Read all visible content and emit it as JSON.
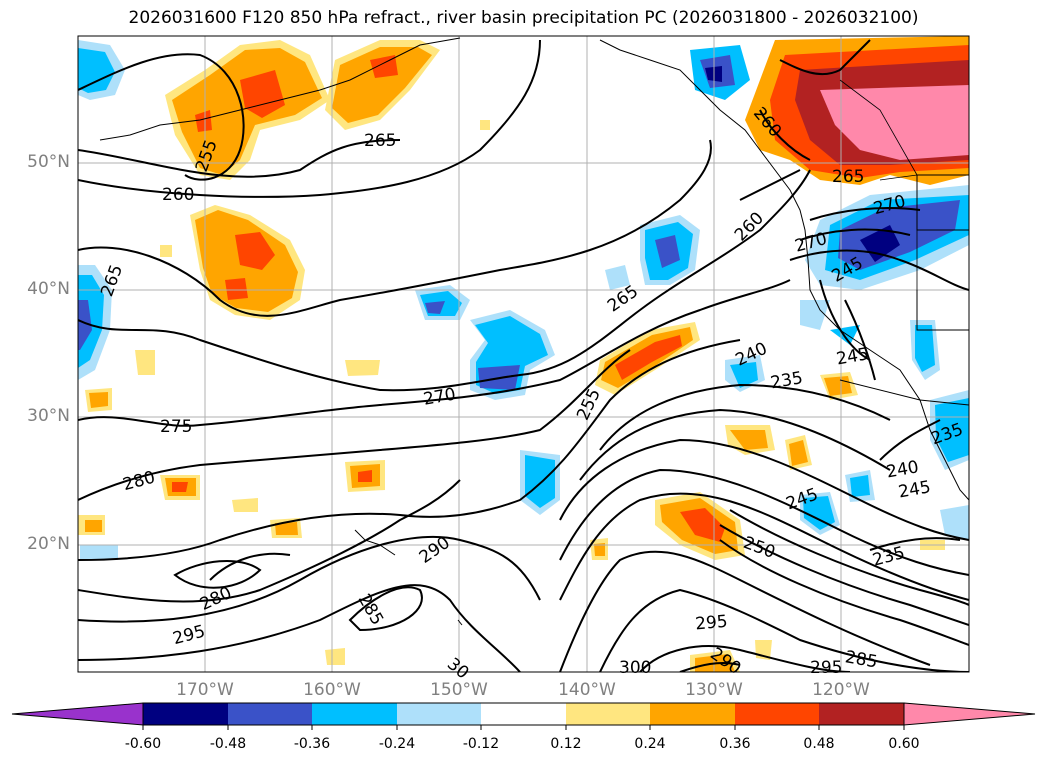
{
  "title": "2026031600 F120 850 hPa refract., river basin precipitation PC (2026031800 - 2026032100)",
  "lat_labels": [
    "50°N",
    "40°N",
    "30°N",
    "20°N"
  ],
  "lon_labels": [
    "170°W",
    "160°W",
    "150°W",
    "140°W",
    "130°W",
    "120°W"
  ],
  "contour_labels": [
    "265",
    "260",
    "255",
    "265",
    "270",
    "275",
    "280",
    "280",
    "295",
    "290",
    "285",
    "255",
    "265",
    "260",
    "260",
    "265",
    "270",
    "270",
    "245",
    "240",
    "235",
    "245",
    "250",
    "295",
    "300",
    "295",
    "285",
    "290",
    "235",
    "240",
    "245",
    "245",
    "235",
    "30"
  ],
  "colorbar": {
    "labels": [
      "-0.60",
      "-0.48",
      "-0.36",
      "-0.24",
      "-0.12",
      "0.12",
      "0.24",
      "0.36",
      "0.48",
      "0.60"
    ],
    "colors": [
      "#9932cc",
      "#000080",
      "#3a52c8",
      "#00bfff",
      "#aee0fa",
      "#ffffff",
      "#ffe680",
      "#ffa500",
      "#ff4500",
      "#b22222",
      "#ff88aa"
    ]
  }
}
